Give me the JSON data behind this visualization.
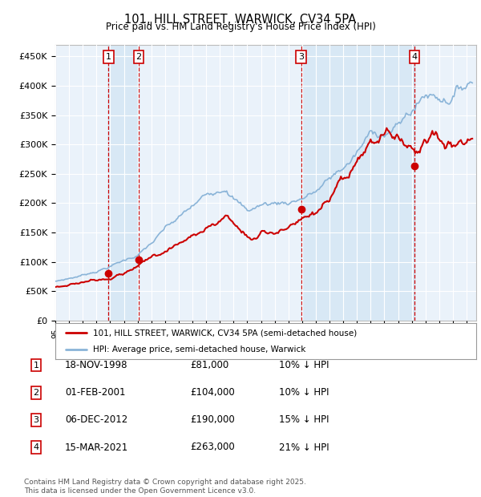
{
  "title": "101, HILL STREET, WARWICK, CV34 5PA",
  "subtitle": "Price paid vs. HM Land Registry's House Price Index (HPI)",
  "ylim": [
    0,
    470000
  ],
  "yticks": [
    0,
    50000,
    100000,
    150000,
    200000,
    250000,
    300000,
    350000,
    400000,
    450000
  ],
  "ytick_labels": [
    "£0",
    "£50K",
    "£100K",
    "£150K",
    "£200K",
    "£250K",
    "£300K",
    "£350K",
    "£400K",
    "£450K"
  ],
  "xlim_start": 1995.0,
  "xlim_end": 2025.7,
  "legend_line1": "101, HILL STREET, WARWICK, CV34 5PA (semi-detached house)",
  "legend_line2": "HPI: Average price, semi-detached house, Warwick",
  "transactions": [
    {
      "num": 1,
      "date_str": "18-NOV-1998",
      "date_x": 1998.88,
      "price": 81000,
      "label": "1"
    },
    {
      "num": 2,
      "date_str": "01-FEB-2001",
      "date_x": 2001.08,
      "price": 104000,
      "label": "2"
    },
    {
      "num": 3,
      "date_str": "06-DEC-2012",
      "date_x": 2012.93,
      "price": 190000,
      "label": "3"
    },
    {
      "num": 4,
      "date_str": "15-MAR-2021",
      "date_x": 2021.2,
      "price": 263000,
      "label": "4"
    }
  ],
  "table_rows": [
    {
      "num": "1",
      "date": "18-NOV-1998",
      "price": "£81,000",
      "pct": "10% ↓ HPI"
    },
    {
      "num": "2",
      "date": "01-FEB-2001",
      "price": "£104,000",
      "pct": "10% ↓ HPI"
    },
    {
      "num": "3",
      "date": "06-DEC-2012",
      "price": "£190,000",
      "pct": "15% ↓ HPI"
    },
    {
      "num": "4",
      "date": "15-MAR-2021",
      "price": "£263,000",
      "pct": "21% ↓ HPI"
    }
  ],
  "footnote": "Contains HM Land Registry data © Crown copyright and database right 2025.\nThis data is licensed under the Open Government Licence v3.0.",
  "hpi_color": "#8ab4d8",
  "price_color": "#cc0000",
  "marker_color": "#cc0000",
  "vline_color": "#cc0000",
  "shade_color": "#d8e8f5",
  "bg_color": "#eaf2fa",
  "grid_color": "#ffffff"
}
